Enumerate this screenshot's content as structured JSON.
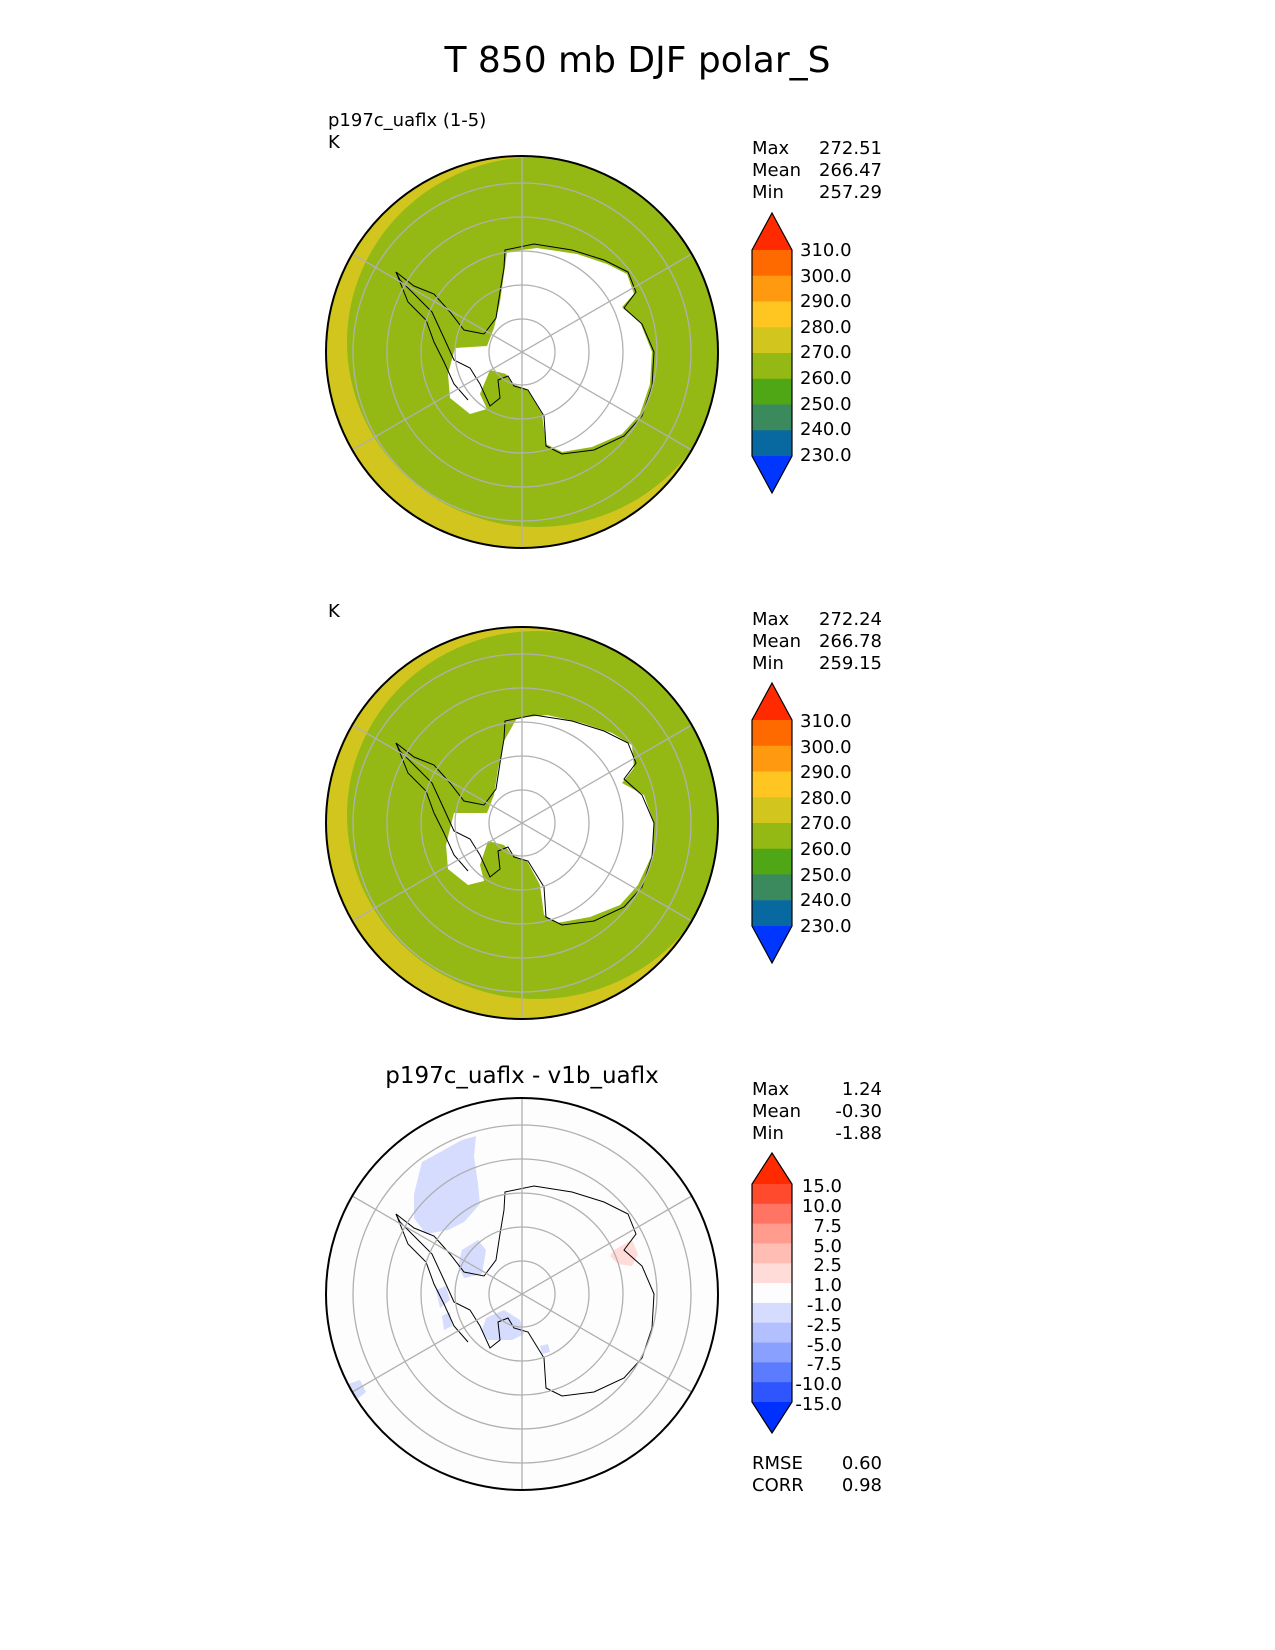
{
  "figure": {
    "title": "T 850 mb DJF polar_S"
  },
  "panels": [
    {
      "id": "test",
      "label_line1": "p197c_uaflx (1-5)",
      "label_line2": "K",
      "heading": "",
      "stats": [
        {
          "label": "Max",
          "value": "272.51"
        },
        {
          "label": "Mean",
          "value": "266.47"
        },
        {
          "label": "Min",
          "value": "257.29"
        }
      ]
    },
    {
      "id": "reference",
      "label_line1": "",
      "label_line2": "K",
      "heading": "",
      "stats": [
        {
          "label": "Max",
          "value": "272.24"
        },
        {
          "label": "Mean",
          "value": "266.78"
        },
        {
          "label": "Min",
          "value": "259.15"
        }
      ]
    },
    {
      "id": "difference",
      "label_line1": "",
      "label_line2": "",
      "heading": "p197c_uaflx - v1b_uaflx",
      "stats": [
        {
          "label": "Max",
          "value": "1.24"
        },
        {
          "label": "Mean",
          "value": "-0.30"
        },
        {
          "label": "Min",
          "value": "-1.88"
        }
      ],
      "extra_stats": [
        {
          "label": "RMSE",
          "value": "0.60"
        },
        {
          "label": "CORR",
          "value": "0.98"
        }
      ]
    }
  ],
  "colorbars": {
    "temperature": {
      "ticks": [
        "310.0",
        "300.0",
        "290.0",
        "280.0",
        "270.0",
        "260.0",
        "250.0",
        "240.0",
        "230.0"
      ],
      "colors": [
        "#ff2a00",
        "#ff6a00",
        "#ff9a10",
        "#ffc520",
        "#d2c51e",
        "#94b914",
        "#4fa716",
        "#3a8a5e",
        "#0869a0",
        "#0036ff"
      ]
    },
    "difference": {
      "ticks": [
        "15.0",
        "10.0",
        "7.5",
        "5.0",
        "2.5",
        "1.0",
        "-1.0",
        "-2.5",
        "-5.0",
        "-7.5",
        "-10.0",
        "-15.0"
      ],
      "colors": [
        "#ff2a00",
        "#ff4a2e",
        "#ff7462",
        "#ff9c8e",
        "#ffbdb3",
        "#ffdcd8",
        "#fdfdfd",
        "#d5dcfd",
        "#b2c0ff",
        "#8aa0ff",
        "#5c7cff",
        "#2f55ff",
        "#0030ff"
      ]
    }
  },
  "map_colors": {
    "land_mask": "#ffffff",
    "outer_ring": "#d2c51e",
    "main_field": "#94b914",
    "diff_background": "#fdfdfd",
    "diff_negative": "#d5dcfd",
    "diff_positive": "#ffdcd8",
    "gridlines": "#b0b0b0",
    "coastline": "#000000"
  }
}
